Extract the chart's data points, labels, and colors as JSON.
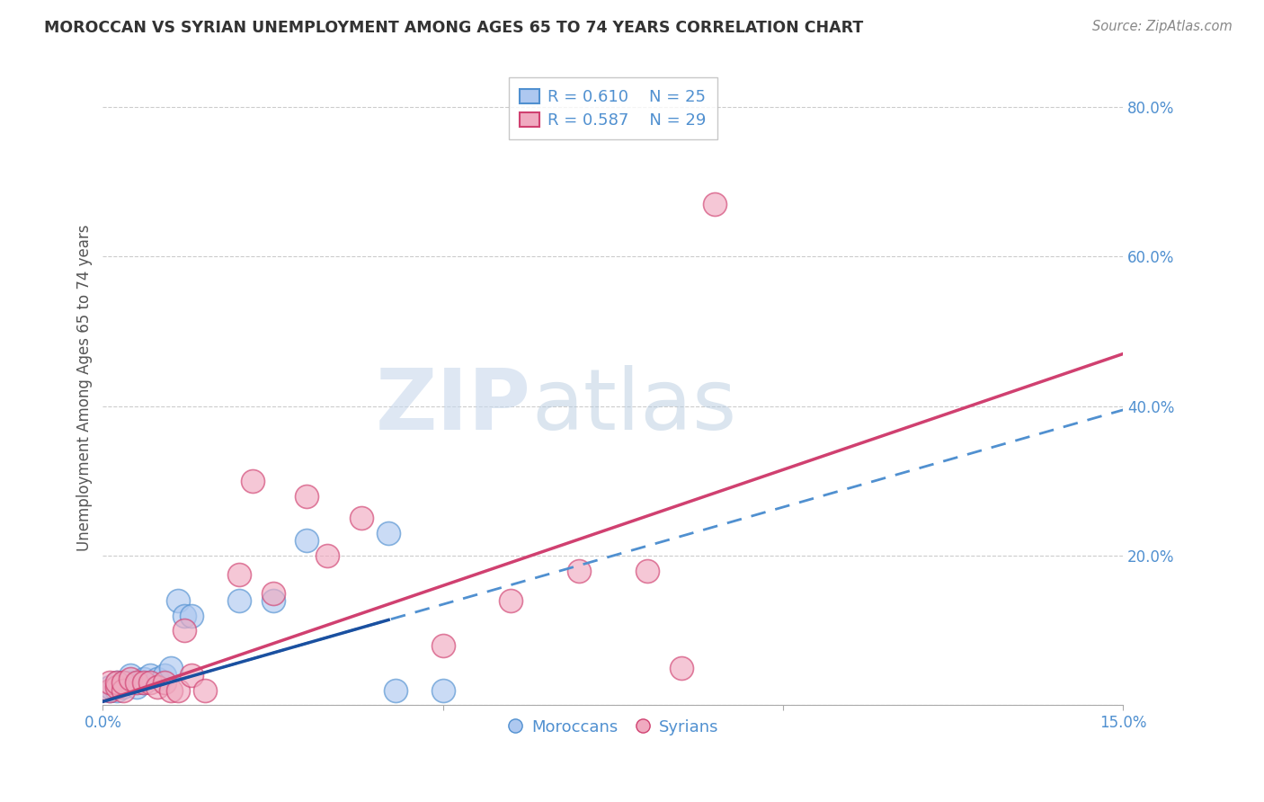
{
  "title": "MOROCCAN VS SYRIAN UNEMPLOYMENT AMONG AGES 65 TO 74 YEARS CORRELATION CHART",
  "source": "Source: ZipAtlas.com",
  "ylabel": "Unemployment Among Ages 65 to 74 years",
  "xlim": [
    0.0,
    0.15
  ],
  "ylim": [
    0.0,
    0.85
  ],
  "yticks_right": [
    0.0,
    0.2,
    0.4,
    0.6,
    0.8
  ],
  "ytickslabels_right": [
    "",
    "20.0%",
    "40.0%",
    "60.0%",
    "80.0%"
  ],
  "moroccan_R": 0.61,
  "moroccan_N": 25,
  "syrian_R": 0.587,
  "syrian_N": 29,
  "moroccan_color": "#aec8f0",
  "syrian_color": "#f0aac0",
  "moroccan_line_color": "#5090d0",
  "syrian_line_color": "#d04070",
  "background_color": "#ffffff",
  "grid_color": "#cccccc",
  "moroccan_x": [
    0.001,
    0.001,
    0.002,
    0.002,
    0.003,
    0.003,
    0.004,
    0.004,
    0.005,
    0.005,
    0.006,
    0.006,
    0.007,
    0.008,
    0.009,
    0.01,
    0.011,
    0.012,
    0.013,
    0.02,
    0.025,
    0.03,
    0.042,
    0.043,
    0.05
  ],
  "moroccan_y": [
    0.02,
    0.025,
    0.02,
    0.03,
    0.025,
    0.03,
    0.03,
    0.04,
    0.03,
    0.025,
    0.03,
    0.035,
    0.04,
    0.035,
    0.04,
    0.05,
    0.14,
    0.12,
    0.12,
    0.14,
    0.14,
    0.22,
    0.23,
    0.02,
    0.02
  ],
  "syrian_x": [
    0.001,
    0.001,
    0.002,
    0.002,
    0.003,
    0.003,
    0.004,
    0.005,
    0.006,
    0.007,
    0.008,
    0.009,
    0.01,
    0.011,
    0.012,
    0.013,
    0.015,
    0.02,
    0.022,
    0.025,
    0.03,
    0.033,
    0.038,
    0.05,
    0.06,
    0.07,
    0.08,
    0.085,
    0.09
  ],
  "syrian_y": [
    0.02,
    0.03,
    0.025,
    0.03,
    0.02,
    0.03,
    0.035,
    0.03,
    0.03,
    0.03,
    0.025,
    0.03,
    0.02,
    0.02,
    0.1,
    0.04,
    0.02,
    0.175,
    0.3,
    0.15,
    0.28,
    0.2,
    0.25,
    0.08,
    0.14,
    0.18,
    0.18,
    0.05,
    0.67
  ],
  "moroccan_trend": [
    0.002,
    0.44
  ],
  "syrian_trend": [
    0.0,
    0.46
  ],
  "watermark_zip": "ZIP",
  "watermark_atlas": "atlas",
  "legend_moroccan_label": "Moroccans",
  "legend_syrian_label": "Syrians"
}
